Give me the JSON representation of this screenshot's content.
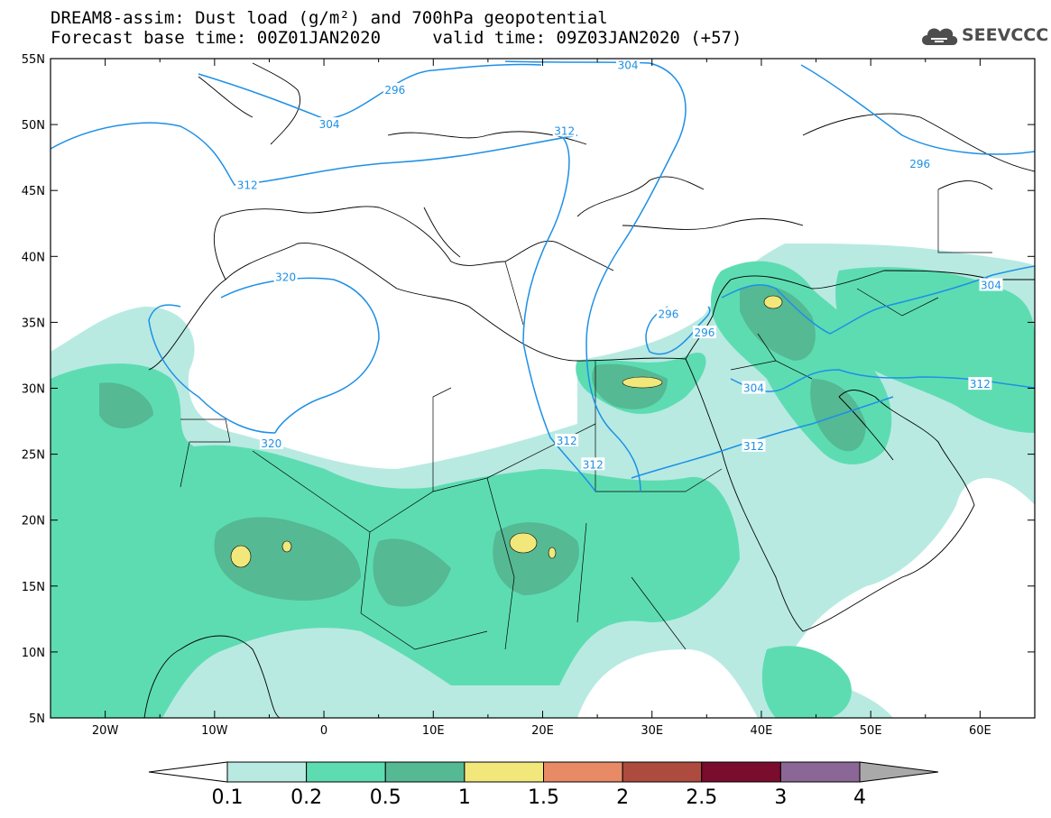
{
  "title": {
    "line1": "DREAM8-assim: Dust load (g/m²) and 700hPa geopotential",
    "line2": "Forecast base time: 00Z01JAN2020     valid time: 09Z03JAN2020 (+57)"
  },
  "logo": {
    "text": "SEEVCCC",
    "icon": "cloud-icon"
  },
  "map": {
    "lon_range": [
      -25,
      65
    ],
    "lat_range": [
      5,
      55
    ],
    "lon_ticks": [
      {
        "value": -20,
        "label": "20W"
      },
      {
        "value": -10,
        "label": "10W"
      },
      {
        "value": 0,
        "label": "0"
      },
      {
        "value": 10,
        "label": "10E"
      },
      {
        "value": 20,
        "label": "20E"
      },
      {
        "value": 30,
        "label": "30E"
      },
      {
        "value": 40,
        "label": "40E"
      },
      {
        "value": 50,
        "label": "50E"
      },
      {
        "value": 60,
        "label": "60E"
      }
    ],
    "lat_ticks": [
      {
        "value": 55,
        "label": "55N"
      },
      {
        "value": 50,
        "label": "50N"
      },
      {
        "value": 45,
        "label": "45N"
      },
      {
        "value": 40,
        "label": "40N"
      },
      {
        "value": 35,
        "label": "35N"
      },
      {
        "value": 30,
        "label": "30N"
      },
      {
        "value": 25,
        "label": "25N"
      },
      {
        "value": 20,
        "label": "20N"
      },
      {
        "value": 15,
        "label": "15N"
      },
      {
        "value": 10,
        "label": "10N"
      },
      {
        "value": 5,
        "label": "5N"
      }
    ],
    "contour_labels": [
      {
        "text": "296",
        "lon": 6.5,
        "lat": 52.6
      },
      {
        "text": "304",
        "lon": 27.8,
        "lat": 54.5
      },
      {
        "text": "304",
        "lon": 0.5,
        "lat": 50.0
      },
      {
        "text": "312",
        "lon": 22.0,
        "lat": 49.5
      },
      {
        "text": "312",
        "lon": -7.0,
        "lat": 45.4
      },
      {
        "text": "296",
        "lon": 54.5,
        "lat": 47.0
      },
      {
        "text": "320",
        "lon": -3.5,
        "lat": 38.4
      },
      {
        "text": "296",
        "lon": 31.5,
        "lat": 35.6
      },
      {
        "text": "296",
        "lon": 34.8,
        "lat": 34.2
      },
      {
        "text": "304",
        "lon": 61.0,
        "lat": 37.8
      },
      {
        "text": "312",
        "lon": 60.0,
        "lat": 30.3
      },
      {
        "text": "304",
        "lon": 39.3,
        "lat": 30.0
      },
      {
        "text": "312",
        "lon": 39.3,
        "lat": 25.6
      },
      {
        "text": "320",
        "lon": -4.8,
        "lat": 25.8
      },
      {
        "text": "312",
        "lon": 22.2,
        "lat": 26.0
      },
      {
        "text": "312",
        "lon": 24.6,
        "lat": 24.2
      }
    ]
  },
  "colorbar": {
    "labels": [
      "0.1",
      "0.2",
      "0.5",
      "1",
      "1.5",
      "2",
      "2.5",
      "3",
      "4"
    ],
    "colors": [
      "#b8eae2",
      "#5ddcb2",
      "#55b994",
      "#f2e77a",
      "#e98a66",
      "#ad4b3e",
      "#7a0c2e",
      "#8b6797",
      "#a9a9a9"
    ]
  }
}
